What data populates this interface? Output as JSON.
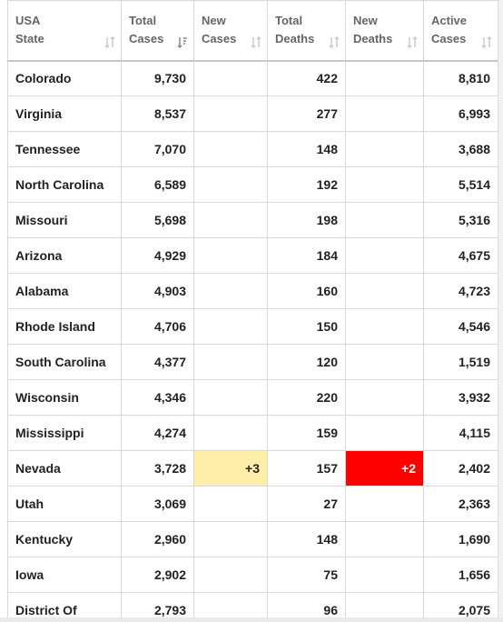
{
  "table": {
    "header": [
      [
        "USA",
        "State"
      ],
      [
        "Total",
        "Cases"
      ],
      [
        "New",
        "Cases"
      ],
      [
        "Total",
        "Deaths"
      ],
      [
        "New",
        "Deaths"
      ],
      [
        "Active",
        "Cases"
      ]
    ],
    "rows": [
      [
        "Colorado",
        "9,730",
        null,
        "422",
        null,
        "8,810"
      ],
      [
        "Virginia",
        "8,537",
        null,
        "277",
        null,
        "6,993"
      ],
      [
        "Tennessee",
        "7,070",
        null,
        "148",
        null,
        "3,688"
      ],
      [
        "North Carolina",
        "6,589",
        null,
        "192",
        null,
        "5,514"
      ],
      [
        "Missouri",
        "5,698",
        null,
        "198",
        null,
        "5,316"
      ],
      [
        "Arizona",
        "4,929",
        null,
        "184",
        null,
        "4,675"
      ],
      [
        "Alabama",
        "4,903",
        null,
        "160",
        null,
        "4,723"
      ],
      [
        "Rhode Island",
        "4,706",
        null,
        "150",
        null,
        "4,546"
      ],
      [
        "South Carolina",
        "4,377",
        null,
        "120",
        null,
        "1,519"
      ],
      [
        "Wisconsin",
        "4,346",
        null,
        "220",
        null,
        "3,932"
      ],
      [
        "Mississippi",
        "4,274",
        null,
        "159",
        null,
        "4,115"
      ],
      [
        "Nevada",
        "3,728",
        "+3",
        "157",
        "+2",
        "2,402"
      ],
      [
        "Utah",
        "3,069",
        null,
        "27",
        null,
        "2,363"
      ],
      [
        "Kentucky",
        "2,960",
        null,
        "148",
        null,
        "1,690"
      ],
      [
        "Iowa",
        "2,902",
        null,
        "75",
        null,
        "1,656"
      ],
      [
        "District Of",
        "2,793",
        null,
        "96",
        null,
        "2,075"
      ]
    ]
  }
}
